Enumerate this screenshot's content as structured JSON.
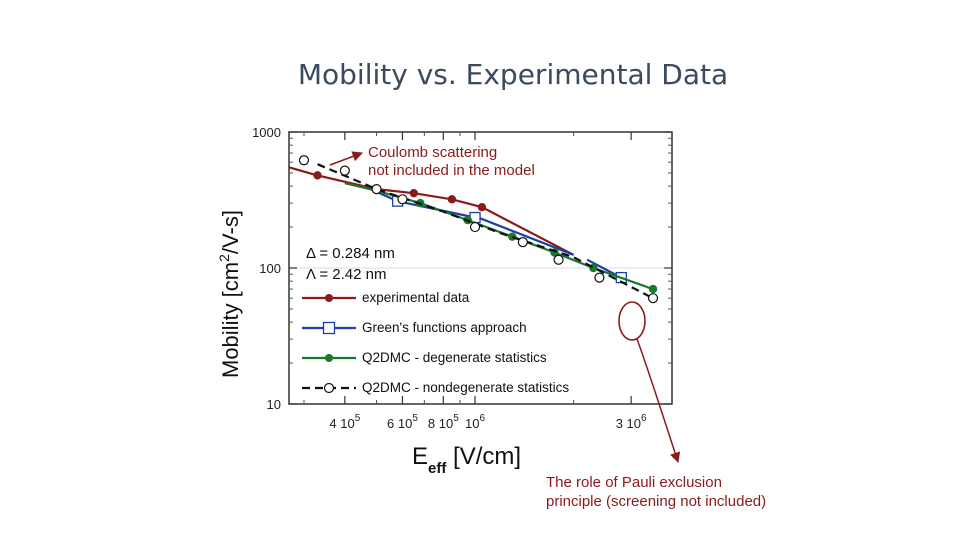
{
  "slide": {
    "title": "Mobility vs. Experimental Data"
  },
  "colors": {
    "experimental": "#8b1a1a",
    "greens": "#1f3fa6",
    "degenerate": "#1a7a2a",
    "nondegenerate": "#111111",
    "title": "#3b4a5e"
  },
  "chart_data": {
    "type": "line",
    "title": "",
    "xlabel": {
      "main": "E",
      "sub": "eff",
      "unit": " [V/cm]"
    },
    "ylabel": {
      "main": "Mobility  [cm",
      "sup": "2",
      "unit": "/V-s]"
    },
    "xscale": "log",
    "yscale": "log",
    "xlim": [
      270000,
      4000000
    ],
    "ylim": [
      10,
      1000
    ],
    "yticks": [
      {
        "value": 10,
        "label": "10"
      },
      {
        "value": 100,
        "label": "100"
      },
      {
        "value": 1000,
        "label": "1000"
      }
    ],
    "xticks": [
      {
        "value": 400000,
        "base": "4 10",
        "exp": "5"
      },
      {
        "value": 600000,
        "base": "6 10",
        "exp": "5"
      },
      {
        "value": 800000,
        "base": "8 10",
        "exp": "5"
      },
      {
        "value": 1000000,
        "base": "10",
        "exp": "6"
      },
      {
        "value": 3000000,
        "base": "3 10",
        "exp": "6"
      }
    ],
    "legend_position": "bottom-left",
    "parameters": [
      "Δ = 0.284 nm",
      "Λ = 2.42 nm"
    ],
    "series": [
      {
        "name": "experimental data",
        "color": "#8b1a1a",
        "marker": "filled-circle",
        "dash": "solid",
        "line": {
          "x": [
            270000,
            330000,
            500000,
            650000,
            850000,
            1050000,
            2000000
          ],
          "y": [
            550,
            480,
            380,
            355,
            320,
            280,
            125
          ]
        },
        "points": {
          "x": [
            330000,
            500000,
            650000,
            850000,
            1050000
          ],
          "y": [
            480,
            380,
            355,
            320,
            280
          ]
        }
      },
      {
        "name": "Green's functions approach",
        "color": "#1f3fa6",
        "marker": "open-square",
        "dash": "solid",
        "segments": [
          {
            "x": [
              480000,
              580000,
              1000000
            ],
            "y": [
              380,
              310,
              235
            ]
          },
          {
            "x": [
              1000000,
              2000000
            ],
            "y": [
              240,
              125
            ]
          },
          {
            "x": [
              2200000,
              2800000
            ],
            "y": [
              115,
              85
            ]
          }
        ],
        "points": {
          "x": [
            580000,
            1000000,
            2800000
          ],
          "y": [
            310,
            235,
            85
          ]
        }
      },
      {
        "name": "Q2DMC - degenerate statistics",
        "color": "#1a7a2a",
        "marker": "filled-circle",
        "dash": "solid",
        "line": {
          "x": [
            400000,
            500000,
            680000,
            950000,
            1300000,
            1750000,
            2300000,
            3500000
          ],
          "y": [
            420,
            370,
            300,
            225,
            170,
            130,
            100,
            70
          ]
        },
        "points": {
          "x": [
            680000,
            950000,
            1300000,
            1750000,
            2300000,
            3500000
          ],
          "y": [
            300,
            225,
            170,
            130,
            100,
            70
          ]
        }
      },
      {
        "name": "Q2DMC - nondegenerate statistics",
        "color": "#111111",
        "marker": "open-circle",
        "dash": "dashed",
        "line": {
          "x": [
            330000,
            500000,
            800000,
            1200000,
            2000000,
            3500000
          ],
          "y": [
            580,
            380,
            260,
            180,
            120,
            60
          ]
        },
        "points": {
          "x": [
            300000,
            400000,
            500000,
            600000,
            1000000,
            1400000,
            1800000,
            2400000,
            3500000
          ],
          "y": [
            620,
            520,
            380,
            320,
            200,
            155,
            115,
            85,
            60
          ]
        }
      }
    ],
    "annotations": [
      {
        "text": "Coulomb scattering",
        "color": "#8b1a1a"
      },
      {
        "text": "not included in the model",
        "color": "#8b1a1a"
      },
      {
        "text": "The role of Pauli exclusion",
        "color": "#8b1a1a"
      },
      {
        "text": "principle (screening not included)",
        "color": "#8b1a1a"
      }
    ]
  }
}
